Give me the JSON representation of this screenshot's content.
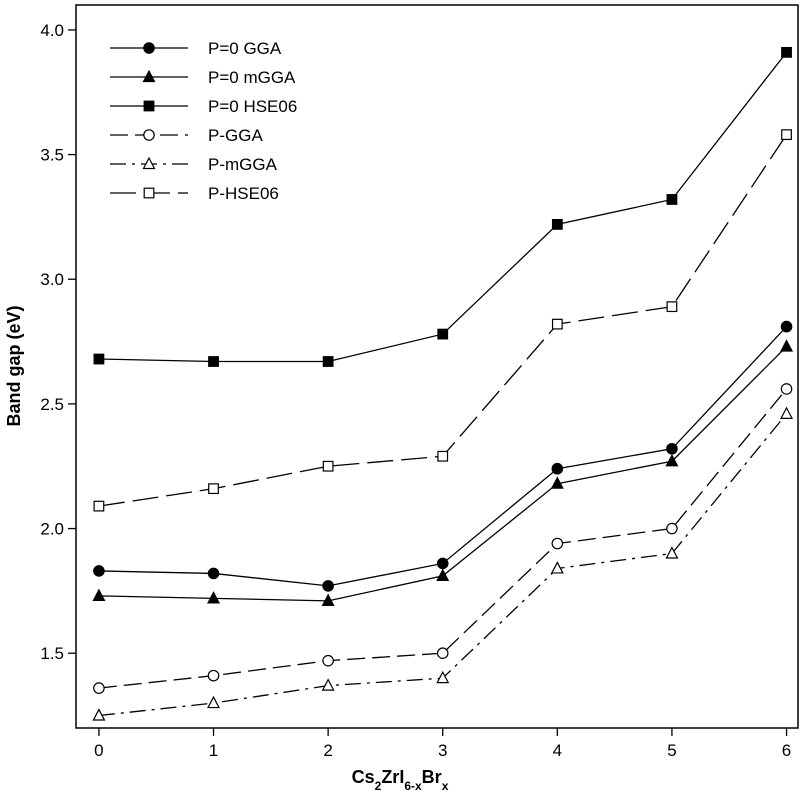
{
  "chart_data": {
    "type": "line",
    "title": "",
    "xlabel": {
      "main": "Cs",
      "sub1": "2",
      "mid": "ZrI",
      "sub2": "6-x",
      "mid2": "Br",
      "sub3": "x"
    },
    "ylabel": "Band gap (eV)",
    "xlim": [
      -0.2,
      6.1
    ],
    "ylim": [
      1.2,
      4.1
    ],
    "xticks": [
      0,
      1,
      2,
      3,
      4,
      5,
      6
    ],
    "xtick_labels": [
      "0",
      "1",
      "2",
      "3",
      "4",
      "5",
      "6"
    ],
    "yticks": [
      1.5,
      2.0,
      2.5,
      3.0,
      3.5,
      4.0
    ],
    "ytick_labels": [
      "1.5",
      "2.0",
      "2.5",
      "3.0",
      "3.5",
      "4.0"
    ],
    "legend_position": "top-left",
    "x": [
      0,
      1,
      2,
      3,
      4,
      5,
      6
    ],
    "series": [
      {
        "name": "P=0 GGA",
        "marker": "circle",
        "filled": true,
        "dash": "solid",
        "values": [
          1.83,
          1.82,
          1.77,
          1.86,
          2.24,
          2.32,
          2.81
        ]
      },
      {
        "name": "P=0 mGGA",
        "marker": "triangle",
        "filled": true,
        "dash": "solid",
        "values": [
          1.73,
          1.72,
          1.71,
          1.81,
          2.18,
          2.27,
          2.73
        ]
      },
      {
        "name": "P=0 HSE06",
        "marker": "square",
        "filled": true,
        "dash": "solid",
        "values": [
          2.68,
          2.67,
          2.67,
          2.78,
          3.22,
          3.32,
          3.91
        ]
      },
      {
        "name": "P-GGA",
        "marker": "circle",
        "filled": false,
        "dash": "long",
        "values": [
          1.36,
          1.41,
          1.47,
          1.5,
          1.94,
          2.0,
          2.56
        ]
      },
      {
        "name": "P-mGGA",
        "marker": "triangle",
        "filled": false,
        "dash": "dashdot",
        "values": [
          1.25,
          1.3,
          1.37,
          1.4,
          1.84,
          1.9,
          2.46
        ]
      },
      {
        "name": "P-HSE06",
        "marker": "square",
        "filled": false,
        "dash": "medium",
        "values": [
          2.09,
          2.16,
          2.25,
          2.29,
          2.82,
          2.89,
          3.58
        ]
      }
    ]
  }
}
